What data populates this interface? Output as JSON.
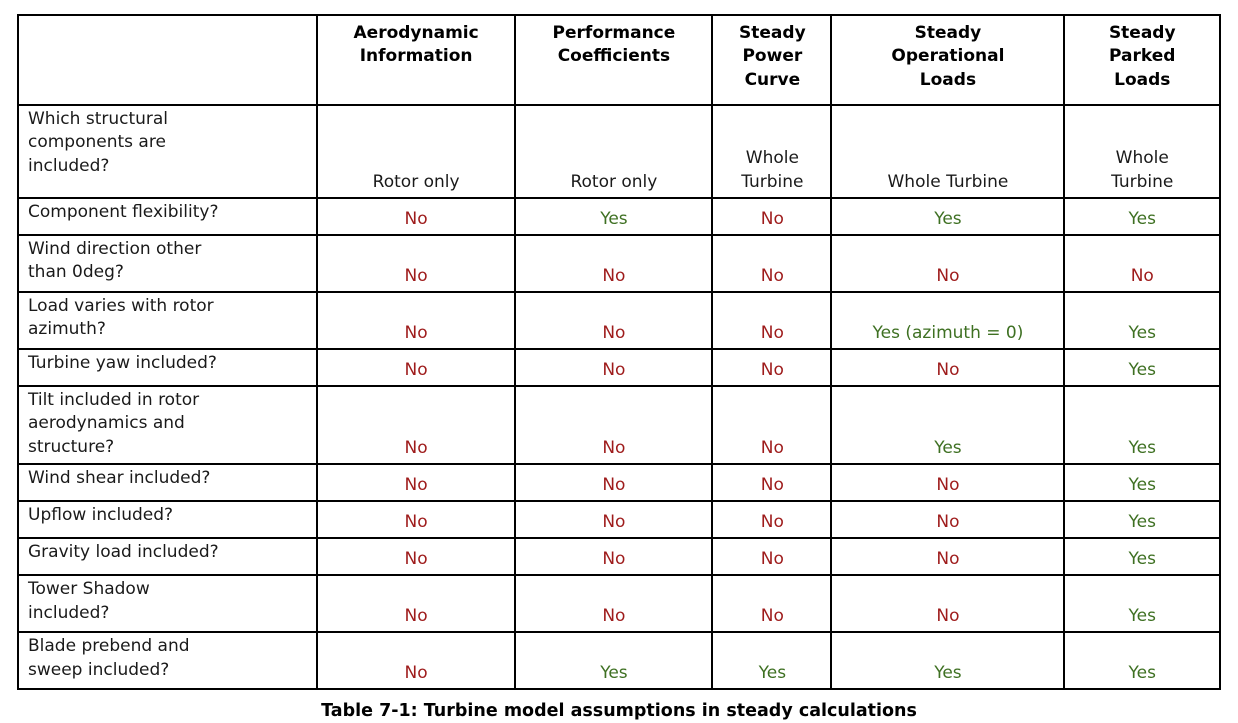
{
  "caption": "Table 7-1: Turbine model assumptions in steady calculations",
  "colors": {
    "yes_text": "#3e7022",
    "no_text": "#9e1b1b",
    "border": "#000000",
    "background": "#ffffff"
  },
  "table": {
    "columns": [
      "",
      "Aerodynamic\nInformation",
      "Performance\nCoefficients",
      "Steady\nPower\nCurve",
      "Steady\nOperational\nLoads",
      "Steady\nParked\nLoads"
    ],
    "rows": [
      {
        "label": "Which structural\ncomponents are\nincluded?",
        "height_class": "h-first",
        "values": [
          "Rotor only",
          "Rotor only",
          "Whole\nTurbine",
          "Whole Turbine",
          "Whole\nTurbine"
        ]
      },
      {
        "label": "Component flexibility?",
        "height_class": "h-single",
        "values": [
          "No",
          "Yes",
          "No",
          "Yes",
          "Yes"
        ]
      },
      {
        "label": "Wind direction other\nthan 0deg?",
        "height_class": "h-double",
        "values": [
          "No",
          "No",
          "No",
          "No",
          "No"
        ]
      },
      {
        "label": "Load varies with rotor\nazimuth?",
        "height_class": "h-double",
        "values": [
          "No",
          "No",
          "No",
          "Yes (azimuth = 0)",
          "Yes"
        ]
      },
      {
        "label": "Turbine yaw included?",
        "height_class": "h-single",
        "values": [
          "No",
          "No",
          "No",
          "No",
          "Yes"
        ]
      },
      {
        "label": "Tilt included in rotor\naerodynamics and\nstructure?",
        "height_class": "h-triple",
        "values": [
          "No",
          "No",
          "No",
          "Yes",
          "Yes"
        ]
      },
      {
        "label": "Wind shear included?",
        "height_class": "h-single",
        "values": [
          "No",
          "No",
          "No",
          "No",
          "Yes"
        ]
      },
      {
        "label": "Upflow included?",
        "height_class": "h-single",
        "values": [
          "No",
          "No",
          "No",
          "No",
          "Yes"
        ]
      },
      {
        "label": "Gravity load included?",
        "height_class": "h-single",
        "values": [
          "No",
          "No",
          "No",
          "No",
          "Yes"
        ]
      },
      {
        "label": "Tower Shadow\nincluded?",
        "height_class": "h-double",
        "values": [
          "No",
          "No",
          "No",
          "No",
          "Yes"
        ]
      },
      {
        "label": "Blade prebend and\nsweep included?",
        "height_class": "h-double",
        "values": [
          "No",
          "Yes",
          "Yes",
          "Yes",
          "Yes"
        ]
      }
    ]
  }
}
